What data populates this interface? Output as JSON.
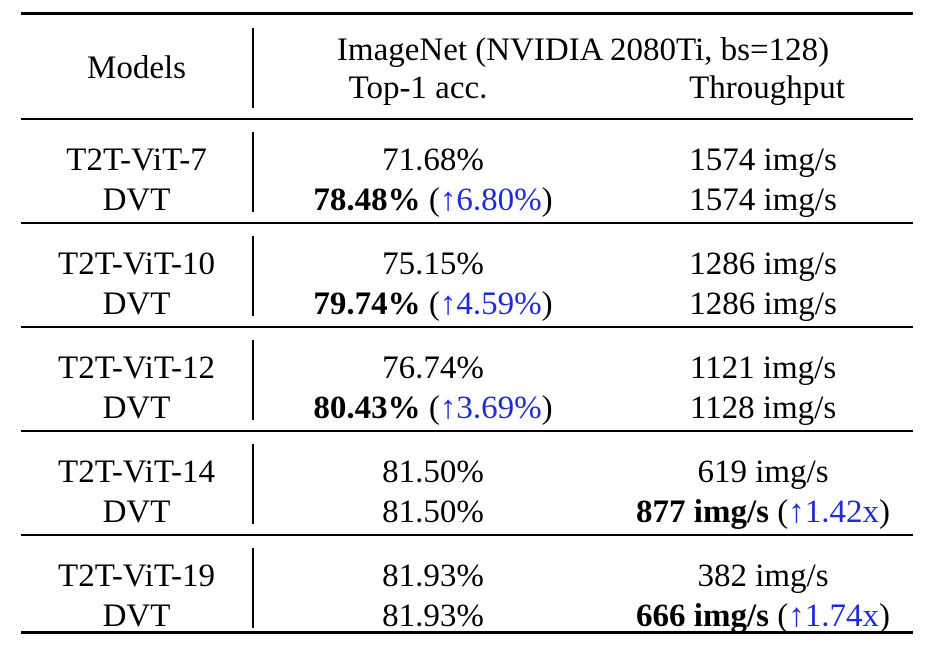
{
  "header": {
    "models": "Models",
    "dataset": "ImageNet (NVIDIA 2080Ti, bs=128)",
    "acc": "Top-1 acc.",
    "throughput": "Throughput"
  },
  "groups": [
    {
      "base": {
        "model": "T2T-ViT-7",
        "acc": "71.68%",
        "throughput": "1574 img/s"
      },
      "dvt": {
        "model": "DVT",
        "acc": "78.48%",
        "acc_gain": "↑6.80%",
        "throughput": "1574 img/s",
        "throughput_gain": ""
      }
    },
    {
      "base": {
        "model": "T2T-ViT-10",
        "acc": "75.15%",
        "throughput": "1286 img/s"
      },
      "dvt": {
        "model": "DVT",
        "acc": "79.74%",
        "acc_gain": "↑4.59%",
        "throughput": "1286 img/s",
        "throughput_gain": ""
      }
    },
    {
      "base": {
        "model": "T2T-ViT-12",
        "acc": "76.74%",
        "throughput": "1121 img/s"
      },
      "dvt": {
        "model": "DVT",
        "acc": "80.43%",
        "acc_gain": "↑3.69%",
        "throughput": "1128 img/s",
        "throughput_gain": ""
      }
    },
    {
      "base": {
        "model": "T2T-ViT-14",
        "acc": "81.50%",
        "throughput": "619 img/s"
      },
      "dvt": {
        "model": "DVT",
        "acc": "81.50%",
        "acc_gain": "",
        "throughput": "877 img/s",
        "throughput_gain": "↑1.42x"
      }
    },
    {
      "base": {
        "model": "T2T-ViT-19",
        "acc": "81.93%",
        "throughput": "382 img/s"
      },
      "dvt": {
        "model": "DVT",
        "acc": "81.93%",
        "acc_gain": "",
        "throughput": "666 img/s",
        "throughput_gain": "↑1.74x"
      }
    }
  ],
  "colors": {
    "gain": "#1f2bd6"
  }
}
